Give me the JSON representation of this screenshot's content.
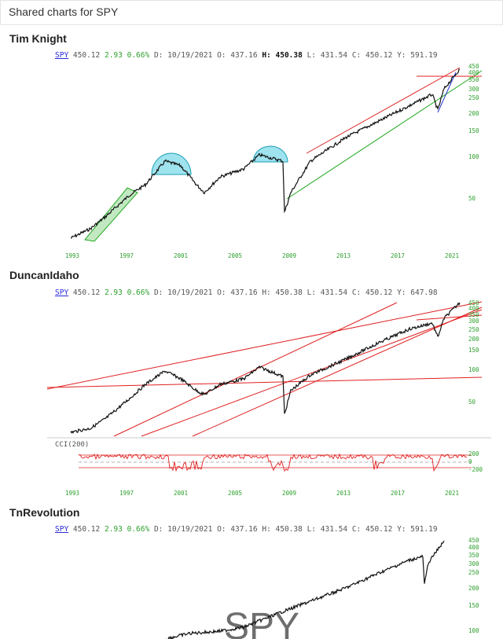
{
  "page": {
    "title": "Shared charts for SPY"
  },
  "quote": {
    "symbol": "SPY",
    "last": "450.12",
    "change": "2.93",
    "change_pct": "0.66%",
    "date_label": "D:",
    "date": "10/19/2021",
    "open_label": "O:",
    "open": "437.16",
    "high_label": "H:",
    "high": "450.38",
    "low_label": "L:",
    "low": "431.54",
    "close_label": "C:",
    "close": "450.12"
  },
  "charts": [
    {
      "author": "Tim Knight",
      "y_label": "Y:",
      "y_value": "591.19",
      "y_ticks": [
        "450",
        "400",
        "350",
        "300",
        "250",
        "200",
        "150",
        "100",
        "50"
      ],
      "x_ticks": [
        "1993",
        "1997",
        "2001",
        "2005",
        "2009",
        "2013",
        "2017",
        "2021"
      ]
    },
    {
      "author": "DuncanIdaho",
      "y_label": "Y:",
      "y_value": "647.98",
      "y_ticks": [
        "450",
        "400",
        "350",
        "300",
        "250",
        "200",
        "150",
        "100",
        "50"
      ],
      "x_ticks": [
        "1993",
        "1997",
        "2001",
        "2005",
        "2009",
        "2013",
        "2017",
        "2021"
      ],
      "indicator": {
        "label": "CCI(200)",
        "ticks": [
          "200",
          "0",
          "-200"
        ]
      }
    },
    {
      "author": "TnRevolution",
      "y_label": "Y:",
      "y_value": "591.19",
      "y_ticks": [
        "450",
        "400",
        "350",
        "300",
        "250",
        "200",
        "150",
        "100"
      ],
      "watermark": "SPY"
    }
  ],
  "colors": {
    "price_line": "#111111",
    "trend_red": "#e02020",
    "trend_green": "#22aa22",
    "trend_blue": "#2233cc",
    "highlight_cyan": "#9fe3ee",
    "channel_green": "#9ad89a",
    "axis_text": "#2ea02e"
  }
}
